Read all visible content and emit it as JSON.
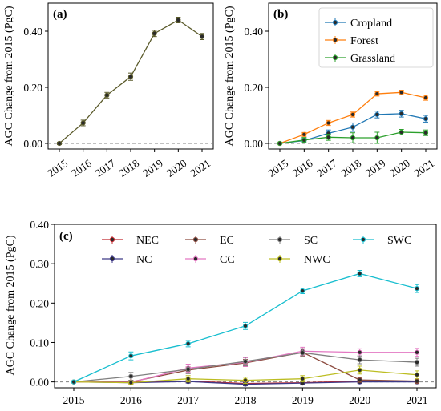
{
  "chart_data": [
    {
      "panel_label": "(a)",
      "type": "line",
      "x": [
        2015,
        2016,
        2017,
        2018,
        2019,
        2020,
        2021
      ],
      "ylabel": "AGC Change from 2015 (PgC)",
      "ylim": [
        -0.02,
        0.5
      ],
      "yticks": [
        "0.00",
        "0.20",
        "0.40"
      ],
      "ytick_values": [
        0.0,
        0.2,
        0.4
      ],
      "xticks": [
        "2015",
        "2016",
        "2017",
        "2018",
        "2019",
        "2020",
        "2021"
      ],
      "x_tick_rotation": 35,
      "zero_line": "dashed",
      "legend": "none",
      "series": [
        {
          "color": "#5a5a2a",
          "values": [
            0.0,
            0.073,
            0.172,
            0.238,
            0.392,
            0.44,
            0.381
          ],
          "errors": [
            0.004,
            0.01,
            0.01,
            0.013,
            0.011,
            0.01,
            0.011
          ]
        }
      ]
    },
    {
      "panel_label": "(b)",
      "type": "line",
      "x": [
        2015,
        2016,
        2017,
        2018,
        2019,
        2020,
        2021
      ],
      "ylabel": "AGC Change from 2015 (PgC)",
      "ylim": [
        -0.02,
        0.5
      ],
      "yticks": [
        "0.00",
        "0.20",
        "0.40"
      ],
      "ytick_values": [
        0.0,
        0.2,
        0.4
      ],
      "xticks": [
        "2015",
        "2016",
        "2017",
        "2018",
        "2019",
        "2020",
        "2021"
      ],
      "x_tick_rotation": 35,
      "zero_line": "dashed",
      "legend": "top-right",
      "series": [
        {
          "name": "Cropland",
          "color": "#1f77b4",
          "values": [
            0.0,
            0.01,
            0.036,
            0.058,
            0.103,
            0.106,
            0.088
          ],
          "errors": [
            0.002,
            0.008,
            0.012,
            0.015,
            0.012,
            0.012,
            0.012
          ]
        },
        {
          "name": "Forest",
          "color": "#ff7f0e",
          "values": [
            0.0,
            0.032,
            0.073,
            0.103,
            0.177,
            0.182,
            0.163
          ],
          "errors": [
            0.002,
            0.007,
            0.009,
            0.009,
            0.008,
            0.008,
            0.009
          ]
        },
        {
          "name": "Grassland",
          "color": "#2ca02c",
          "values": [
            0.0,
            0.012,
            0.022,
            0.02,
            0.02,
            0.04,
            0.038
          ],
          "errors": [
            0.002,
            0.009,
            0.011,
            0.018,
            0.02,
            0.01,
            0.01
          ]
        }
      ]
    },
    {
      "panel_label": "(c)",
      "type": "line",
      "x": [
        2015,
        2016,
        2017,
        2018,
        2019,
        2020,
        2021
      ],
      "ylabel": "AGC Change from 2015 (PgC)",
      "ylim": [
        -0.015,
        0.4
      ],
      "yticks": [
        "0.00",
        "0.10",
        "0.20",
        "0.30",
        "0.40"
      ],
      "ytick_values": [
        0.0,
        0.1,
        0.2,
        0.3,
        0.4
      ],
      "xticks": [
        "2015",
        "2016",
        "2017",
        "2018",
        "2019",
        "2020",
        "2021"
      ],
      "x_tick_rotation": 0,
      "zero_line": "dashed",
      "legend": "top, 4 columns",
      "series": [
        {
          "name": "NEC",
          "color": "#c0272d",
          "values": [
            0.0,
            0.0,
            0.002,
            -0.004,
            -0.002,
            0.002,
            0.002
          ],
          "errors": [
            0.001,
            0.003,
            0.004,
            0.004,
            0.004,
            0.004,
            0.004
          ]
        },
        {
          "name": "NC",
          "color": "#3f3a87",
          "values": [
            0.0,
            -0.002,
            0.001,
            -0.006,
            -0.003,
            0.0,
            0.0
          ],
          "errors": [
            0.001,
            0.003,
            0.004,
            0.004,
            0.004,
            0.004,
            0.004
          ]
        },
        {
          "name": "EC",
          "color": "#8c4b3f",
          "values": [
            0.0,
            0.0,
            0.03,
            0.048,
            0.075,
            0.005,
            0.002
          ],
          "errors": [
            0.001,
            0.004,
            0.008,
            0.009,
            0.009,
            0.006,
            0.006
          ]
        },
        {
          "name": "CC",
          "color": "#e377c2",
          "values": [
            0.0,
            -0.001,
            0.035,
            0.05,
            0.078,
            0.075,
            0.075
          ],
          "errors": [
            0.001,
            0.004,
            0.01,
            0.011,
            0.01,
            0.009,
            0.01
          ]
        },
        {
          "name": "SC",
          "color": "#7f7f7f",
          "values": [
            0.0,
            0.014,
            0.032,
            0.052,
            0.074,
            0.056,
            0.05
          ],
          "errors": [
            0.001,
            0.01,
            0.011,
            0.011,
            0.01,
            0.01,
            0.01
          ]
        },
        {
          "name": "NWC",
          "color": "#bcbd22",
          "values": [
            0.0,
            -0.002,
            0.008,
            0.004,
            0.008,
            0.03,
            0.018
          ],
          "errors": [
            0.001,
            0.004,
            0.008,
            0.008,
            0.008,
            0.01,
            0.01
          ]
        },
        {
          "name": "SWC",
          "color": "#17becf",
          "values": [
            0.0,
            0.066,
            0.097,
            0.142,
            0.231,
            0.275,
            0.237
          ],
          "errors": [
            0.001,
            0.01,
            0.008,
            0.009,
            0.007,
            0.008,
            0.01
          ]
        }
      ]
    }
  ]
}
